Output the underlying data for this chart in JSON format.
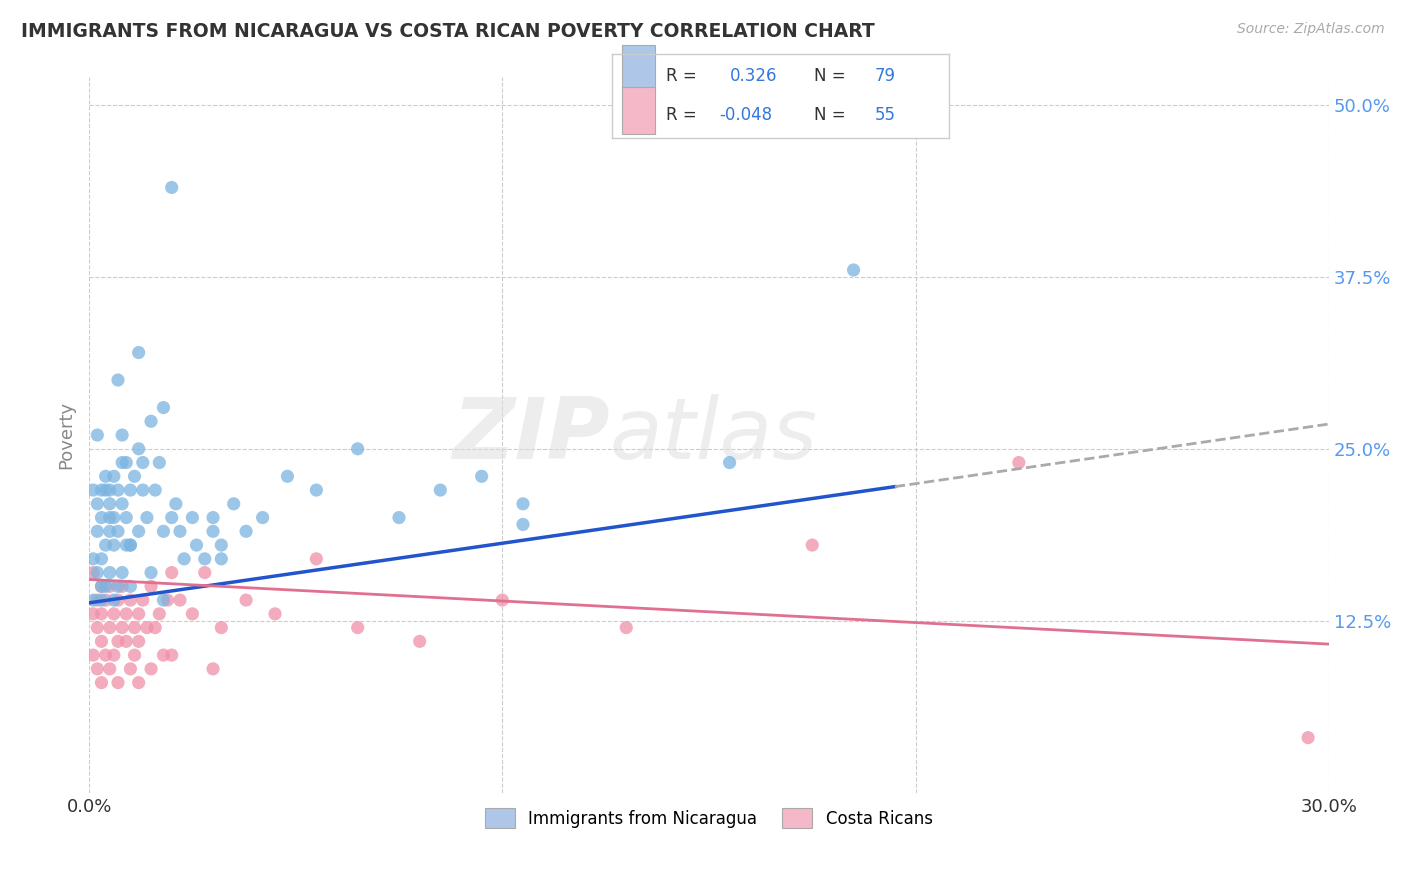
{
  "title": "IMMIGRANTS FROM NICARAGUA VS COSTA RICAN POVERTY CORRELATION CHART",
  "source": "Source: ZipAtlas.com",
  "ylabel_label": "Poverty",
  "xlim": [
    0.0,
    0.3
  ],
  "ylim": [
    0.0,
    0.52
  ],
  "xtick_vals": [
    0.0,
    0.05,
    0.1,
    0.15,
    0.2,
    0.25,
    0.3
  ],
  "xtick_labels": [
    "0.0%",
    "",
    "",
    "",
    "",
    "",
    "30.0%"
  ],
  "ytick_vals": [
    0.0,
    0.125,
    0.25,
    0.375,
    0.5
  ],
  "ytick_labels": [
    "",
    "12.5%",
    "25.0%",
    "37.5%",
    "50.0%"
  ],
  "watermark_zip": "ZIP",
  "watermark_atlas": "atlas",
  "legend_blue_color": "#aec6e8",
  "legend_pink_color": "#f4b8c8",
  "scatter_blue_color": "#7ab4e0",
  "scatter_pink_color": "#f090a8",
  "trendline_blue_color": "#2255cc",
  "trendline_pink_color": "#e07090",
  "trendline_dash_color": "#aaaaaa",
  "grid_color": "#cccccc",
  "background_color": "#ffffff",
  "title_color": "#333333",
  "axis_label_color": "#888888",
  "tick_label_color_x": "#333333",
  "tick_label_color_y": "#5599ee",
  "blue_trend_x0": 0.0,
  "blue_trend_x1": 0.3,
  "blue_trend_y0": 0.138,
  "blue_trend_y1": 0.268,
  "blue_trend_solid_x1": 0.195,
  "pink_trend_x0": 0.0,
  "pink_trend_x1": 0.3,
  "pink_trend_y0": 0.155,
  "pink_trend_y1": 0.108,
  "blue_scatter_x": [
    0.001,
    0.001,
    0.001,
    0.002,
    0.002,
    0.002,
    0.002,
    0.003,
    0.003,
    0.003,
    0.003,
    0.003,
    0.004,
    0.004,
    0.004,
    0.004,
    0.005,
    0.005,
    0.005,
    0.005,
    0.005,
    0.006,
    0.006,
    0.006,
    0.007,
    0.007,
    0.007,
    0.008,
    0.008,
    0.008,
    0.009,
    0.009,
    0.01,
    0.01,
    0.01,
    0.011,
    0.012,
    0.012,
    0.013,
    0.013,
    0.014,
    0.015,
    0.015,
    0.016,
    0.017,
    0.018,
    0.018,
    0.02,
    0.021,
    0.022,
    0.023,
    0.025,
    0.026,
    0.028,
    0.03,
    0.032,
    0.035,
    0.038,
    0.042,
    0.048,
    0.055,
    0.065,
    0.075,
    0.085,
    0.095,
    0.105,
    0.155,
    0.185,
    0.105,
    0.02,
    0.03,
    0.012,
    0.007,
    0.008,
    0.009,
    0.01,
    0.006,
    0.018,
    0.032
  ],
  "blue_scatter_y": [
    0.17,
    0.22,
    0.14,
    0.19,
    0.16,
    0.21,
    0.26,
    0.22,
    0.15,
    0.2,
    0.17,
    0.14,
    0.23,
    0.18,
    0.22,
    0.15,
    0.21,
    0.19,
    0.2,
    0.16,
    0.22,
    0.23,
    0.18,
    0.14,
    0.22,
    0.15,
    0.19,
    0.21,
    0.24,
    0.16,
    0.2,
    0.18,
    0.22,
    0.18,
    0.15,
    0.23,
    0.25,
    0.19,
    0.24,
    0.22,
    0.2,
    0.27,
    0.16,
    0.22,
    0.24,
    0.28,
    0.19,
    0.2,
    0.21,
    0.19,
    0.17,
    0.2,
    0.18,
    0.17,
    0.19,
    0.18,
    0.21,
    0.19,
    0.2,
    0.23,
    0.22,
    0.25,
    0.2,
    0.22,
    0.23,
    0.21,
    0.24,
    0.38,
    0.195,
    0.44,
    0.2,
    0.32,
    0.3,
    0.26,
    0.24,
    0.18,
    0.2,
    0.14,
    0.17
  ],
  "pink_scatter_x": [
    0.001,
    0.001,
    0.001,
    0.002,
    0.002,
    0.002,
    0.003,
    0.003,
    0.003,
    0.003,
    0.004,
    0.004,
    0.005,
    0.005,
    0.005,
    0.006,
    0.006,
    0.007,
    0.007,
    0.007,
    0.008,
    0.008,
    0.009,
    0.009,
    0.01,
    0.01,
    0.011,
    0.011,
    0.012,
    0.012,
    0.013,
    0.014,
    0.015,
    0.015,
    0.016,
    0.017,
    0.018,
    0.019,
    0.02,
    0.022,
    0.025,
    0.028,
    0.032,
    0.038,
    0.045,
    0.055,
    0.065,
    0.08,
    0.1,
    0.13,
    0.175,
    0.225,
    0.295,
    0.012,
    0.02,
    0.03
  ],
  "pink_scatter_y": [
    0.16,
    0.13,
    0.1,
    0.14,
    0.12,
    0.09,
    0.13,
    0.11,
    0.08,
    0.15,
    0.14,
    0.1,
    0.12,
    0.15,
    0.09,
    0.13,
    0.1,
    0.14,
    0.11,
    0.08,
    0.12,
    0.15,
    0.11,
    0.13,
    0.14,
    0.09,
    0.12,
    0.1,
    0.13,
    0.11,
    0.14,
    0.12,
    0.15,
    0.09,
    0.12,
    0.13,
    0.1,
    0.14,
    0.16,
    0.14,
    0.13,
    0.16,
    0.12,
    0.14,
    0.13,
    0.17,
    0.12,
    0.11,
    0.14,
    0.12,
    0.18,
    0.24,
    0.04,
    0.08,
    0.1,
    0.09
  ]
}
